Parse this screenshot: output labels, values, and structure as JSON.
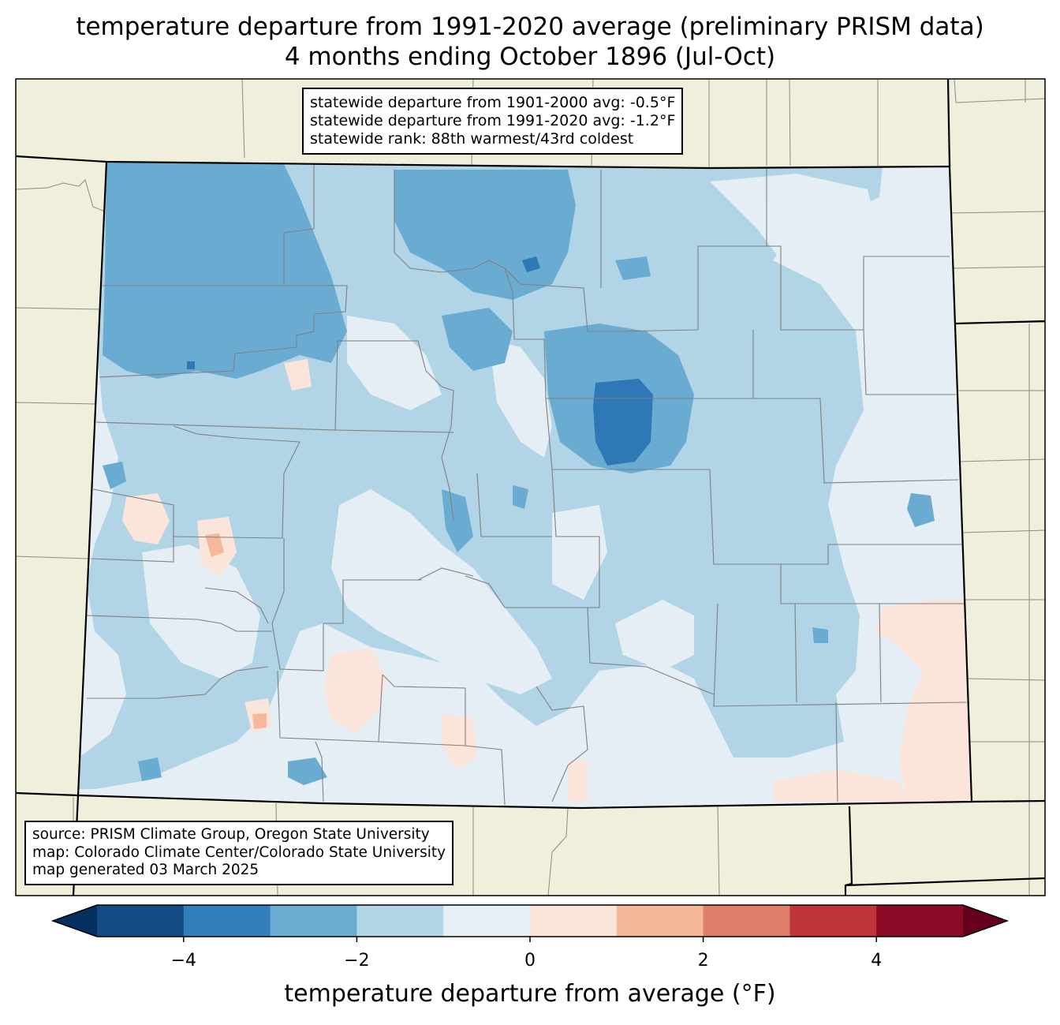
{
  "title": {
    "line1": "temperature departure from 1991-2020 average (preliminary PRISM data)",
    "line2": "4 months ending October 1896 (Jul-Oct)"
  },
  "stats": {
    "line1": "statewide departure from 1901-2000 avg: -0.5°F",
    "line2": "statewide departure from 1991-2020 avg: -1.2°F",
    "line3": "statewide rank: 88th warmest/43rd coldest"
  },
  "source": {
    "line1": "source: PRISM Climate Group, Oregon State University",
    "line2": "map: Colorado Climate Center/Colorado State University",
    "line3": "map generated 03 March 2025"
  },
  "colorbar": {
    "label": "temperature departure from average (°F)",
    "range": [
      -5,
      5
    ],
    "step": 1,
    "ticks": [
      "−4",
      "−2",
      "0",
      "2",
      "4"
    ],
    "tick_values": [
      -4,
      -2,
      0,
      2,
      4
    ],
    "colors": [
      "#134b87",
      "#327fbb",
      "#6bacd1",
      "#b3d4e7",
      "#e6eff5",
      "#fbe4d8",
      "#f6b698",
      "#e07f69",
      "#c0353a",
      "#8b0a26"
    ],
    "under_color": "#053061",
    "over_color": "#67001f"
  },
  "map_colors": {
    "land": "#efefdc",
    "deep_cold": "#2e78b6",
    "cold": "#6aabd2",
    "cool": "#b1d4e7",
    "near_zero": "#e5eef5",
    "slight_warm": "#fbe5da",
    "warm": "#f6b89d"
  }
}
